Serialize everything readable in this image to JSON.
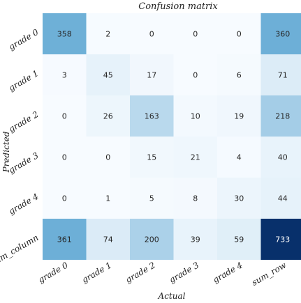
{
  "chart_data": {
    "type": "heatmap",
    "title": "Confusion matrix",
    "xlabel": "Actual",
    "ylabel": "Predicted",
    "x_categories": [
      "grade 0",
      "grade 1",
      "grade 2",
      "grade 3",
      "grade 4",
      "sum_row"
    ],
    "y_categories": [
      "grade 0",
      "grade 1",
      "grade 2",
      "grade 3",
      "grade 4",
      "sum_column"
    ],
    "values": [
      [
        358,
        2,
        0,
        0,
        0,
        360
      ],
      [
        3,
        45,
        17,
        0,
        6,
        71
      ],
      [
        0,
        26,
        163,
        10,
        19,
        218
      ],
      [
        0,
        0,
        15,
        21,
        4,
        40
      ],
      [
        0,
        1,
        5,
        8,
        30,
        44
      ],
      [
        361,
        74,
        200,
        39,
        59,
        733
      ]
    ],
    "colormap": "Blues",
    "colors": {
      "low": "#f7fbff",
      "mid": "#6baed6",
      "high": "#08306b"
    },
    "grid": false,
    "legend": "none"
  }
}
